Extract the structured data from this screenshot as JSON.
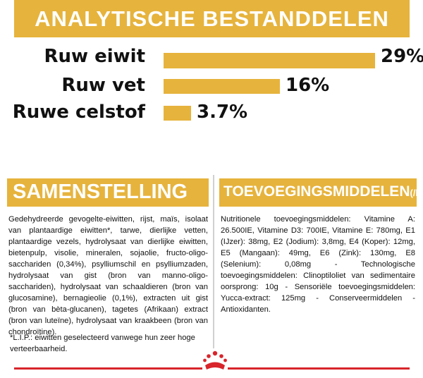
{
  "header": {
    "title": "ANALYTISCHE BESTANDDELEN"
  },
  "analysis": [
    {
      "label": "Ruw eiwit",
      "value": "29%",
      "fraction": 1.0
    },
    {
      "label": "Ruw vet",
      "value": "16%",
      "fraction": 0.55
    },
    {
      "label": "Ruwe celstof",
      "value": "3.7%",
      "fraction": 0.13
    }
  ],
  "composition": {
    "title": "SAMENSTELLING",
    "text": "Gedehydreerde gevogelte-eiwitten, rijst, maïs, isolaat van plantaardige eiwitten*, tarwe, dierlijke vetten, plantaardige vezels, hydrolysaat van dierlijke eiwitten, bietenpulp, visolie, mineralen, sojaolie, fructo-oligo-sacchariden (0,34%), psylliumschil en psylliumzaden, hydrolysaat van gist (bron van manno-oligo-sacchariden), hydrolysaat van schaaldieren (bron van glucosamine), bernagieolie (0,1%), extracten uit gist (bron van bèta-glucanen), tagetes (Afrikaan) extract (bron van luteïne), hydrolysaat van kraakbeen (bron van chondroïtine).",
    "footnote": "*L.I.P.: eiwitten geselecteerd vanwege hun zeer hoge verteerbaarheid."
  },
  "additives": {
    "title": "TOEVOEGINGSMIDDELEN",
    "unit": "(/kg)",
    "text": "Nutritionele toevoegingsmiddelen: Vitamine A: 26.500IE, Vitamine D3: 700IE, Vitamine E: 780mg, E1 (IJzer): 38mg, E2 (Jodium): 3,8mg, E4 (Koper): 12mg, E5 (Mangaan): 49mg, E6 (Zink): 130mg, E8 (Selenium): 0,08mg - Technologische toevoegingsmiddelen: Clinoptiloliet van sedimentaire oorsprong: 10g - Sensoriële toevoegingsmiddelen: Yucca-extract: 125mg - Conserveermiddelen - Antioxidanten."
  },
  "colors": {
    "accent": "#e6b33c",
    "brand_red": "#d8252b"
  },
  "footer": {
    "logo": "crown-logo"
  }
}
